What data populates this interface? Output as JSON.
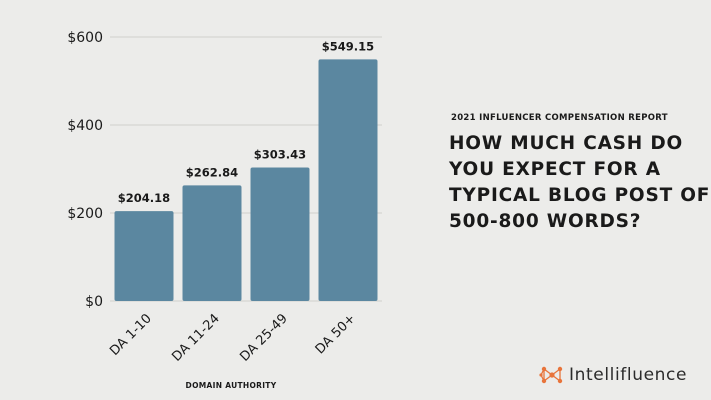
{
  "report": {
    "kicker": "2021 INFLUENCER COMPENSATION REPORT",
    "title": "HOW MUCH CASH DO YOU EXPECT FOR A TYPICAL BLOG POST OF 500-800 WORDS?"
  },
  "brand": {
    "name": "Intellifluence",
    "logo_icon": "network-nodes-icon",
    "logo_color": "#e8743b"
  },
  "chart_data": {
    "type": "bar",
    "categories": [
      "DA 1-10",
      "DA 11-24",
      "DA 25-49",
      "DA 50+"
    ],
    "values": [
      204.18,
      262.84,
      303.43,
      549.15
    ],
    "data_labels": [
      "$204.18",
      "$262.84",
      "$303.43",
      "$549.15"
    ],
    "ylim": [
      0,
      600
    ],
    "yticks": [
      0,
      200,
      400,
      600
    ],
    "ytick_labels": [
      "$0",
      "$200",
      "$400",
      "$600"
    ],
    "xlabel": "DOMAIN AUTHORITY",
    "ylabel": "",
    "title": "",
    "grid": true,
    "bar_color": "#5b87a0",
    "grid_color": "#cfcfcc",
    "legend": "none"
  }
}
